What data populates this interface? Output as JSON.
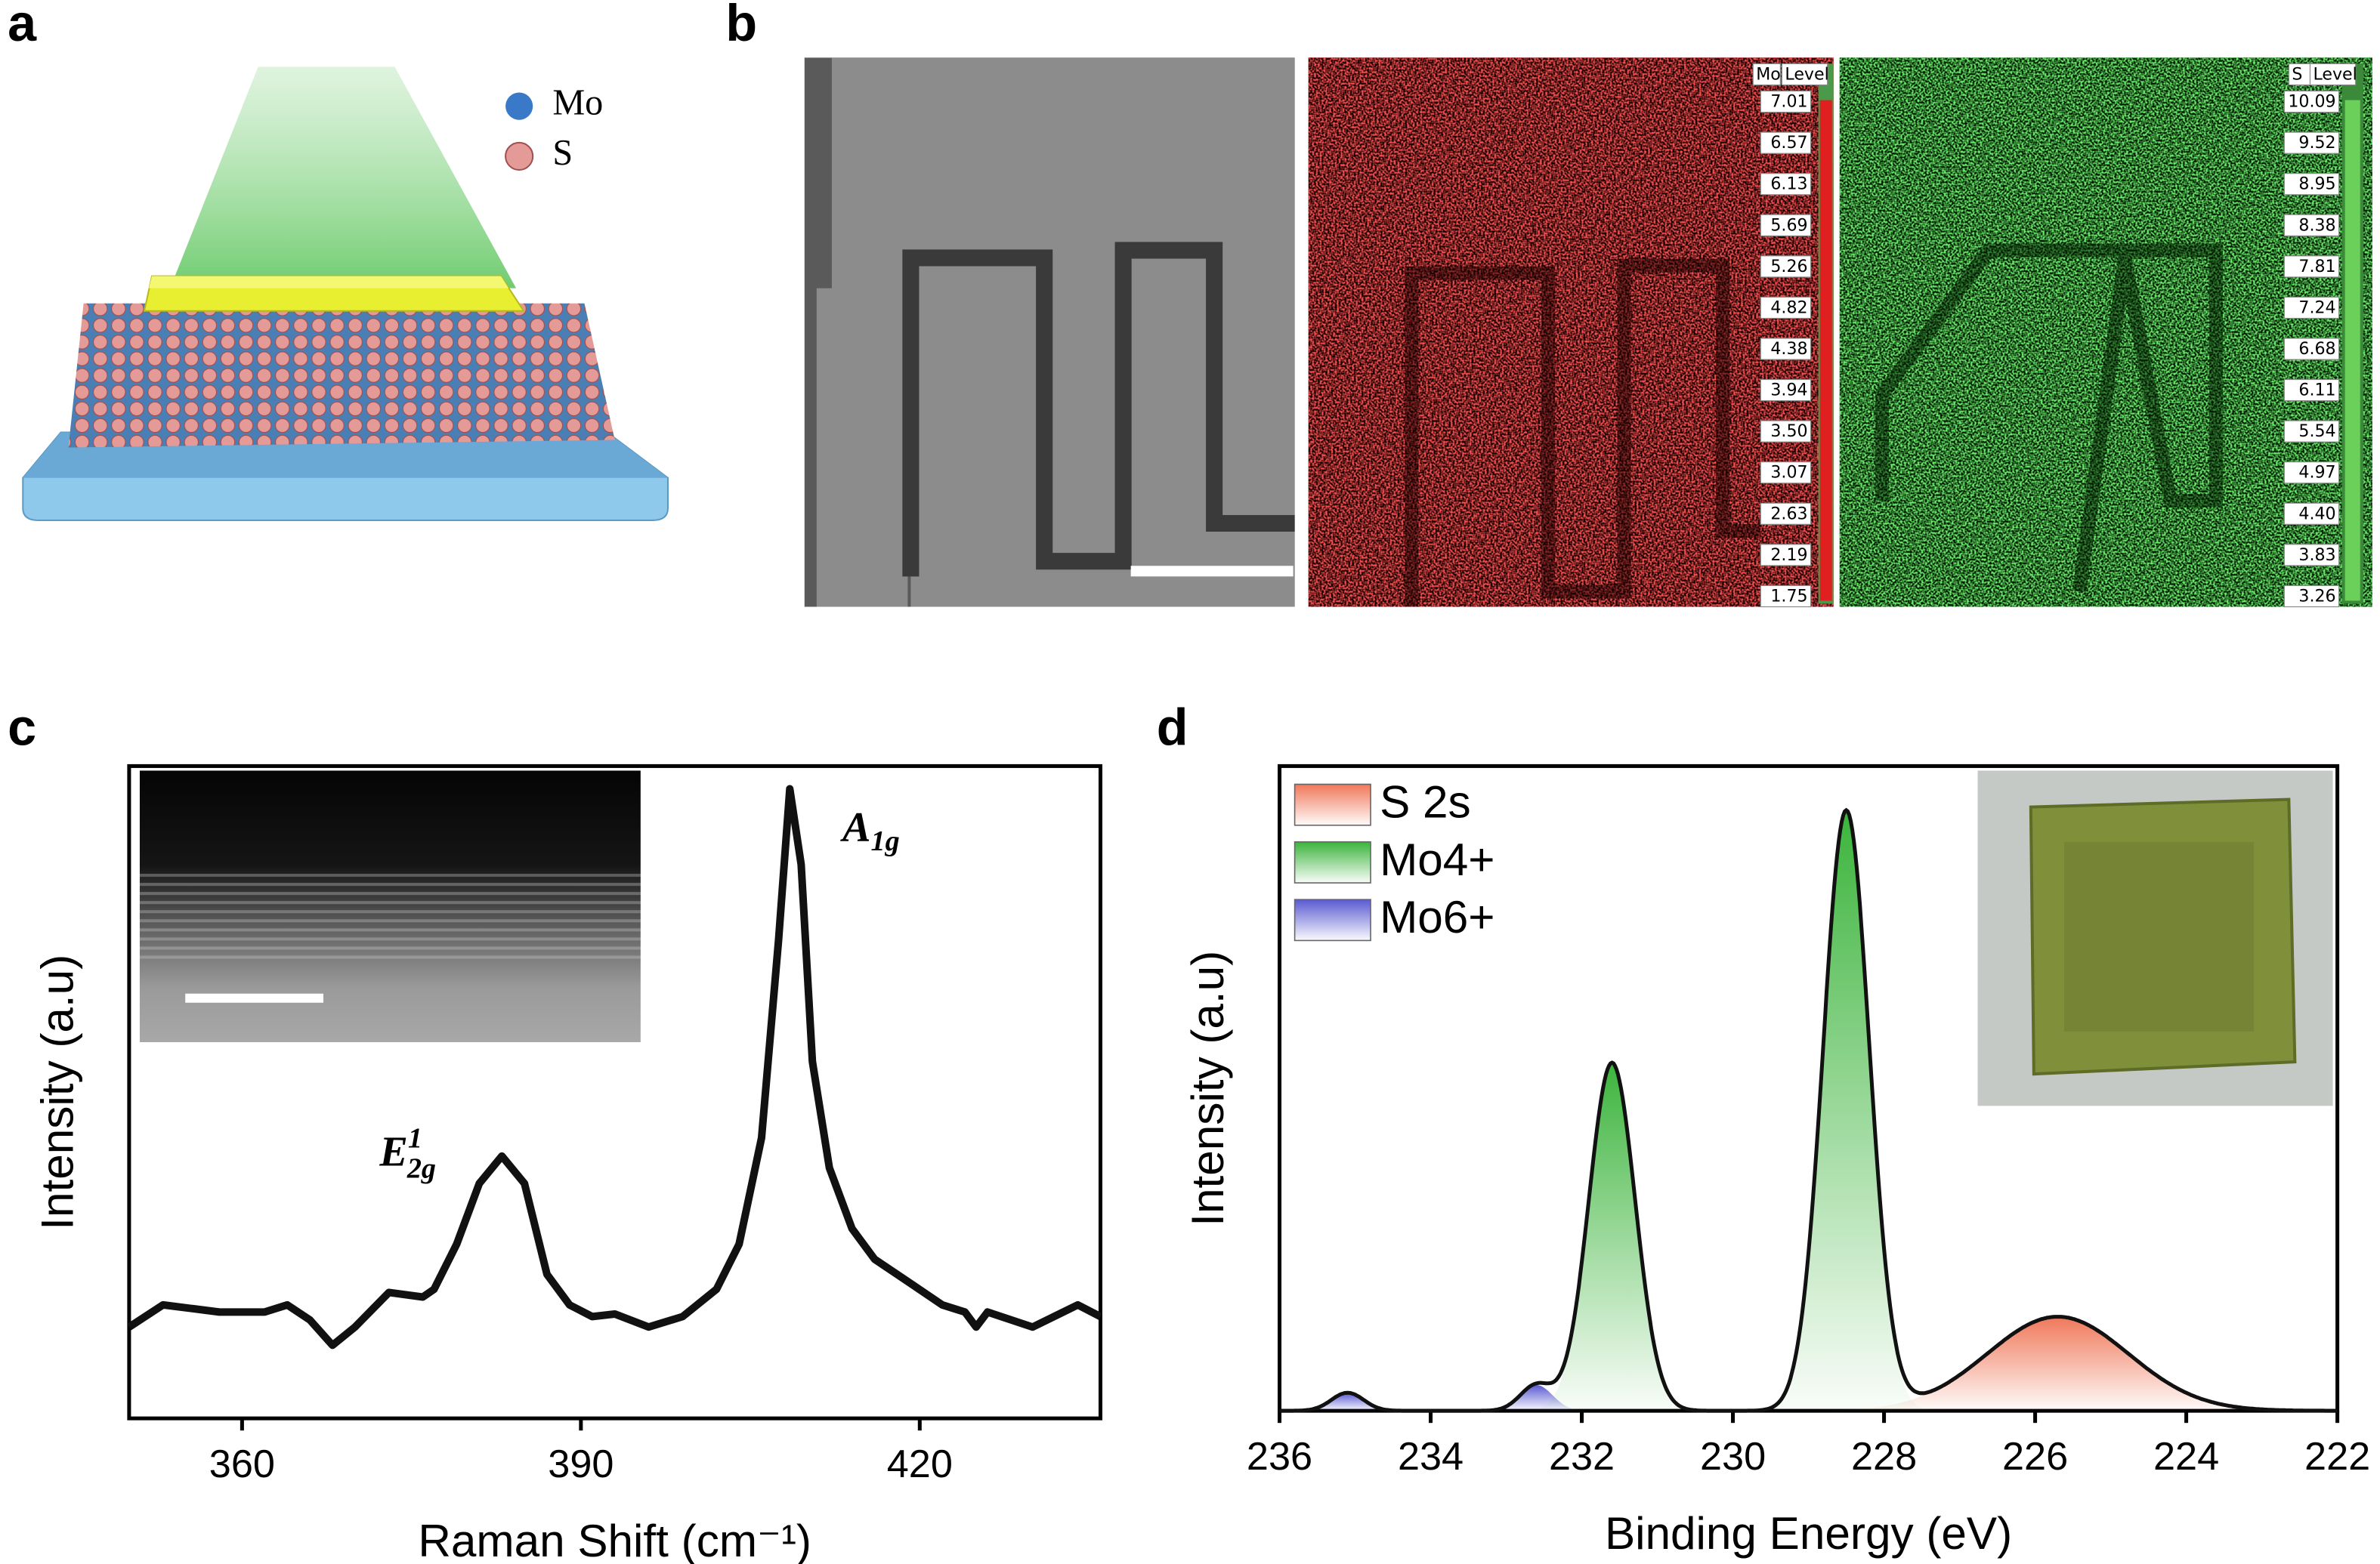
{
  "panel_labels": [
    "a",
    "b",
    "c",
    "d"
  ],
  "panel_a": {
    "legend": [
      "Mo",
      "S"
    ]
  },
  "panel_b": {
    "mo_map": {
      "header": [
        "Mo",
        "Level"
      ],
      "levels": [
        "7.01",
        "6.57",
        "6.13",
        "5.69",
        "5.26",
        "4.82",
        "4.38",
        "3.94",
        "3.50",
        "3.07",
        "2.63",
        "2.19",
        "1.75"
      ]
    },
    "s_map": {
      "header": [
        "S",
        "Level"
      ],
      "levels": [
        "10.09",
        "9.52",
        "8.95",
        "8.38",
        "7.81",
        "7.24",
        "6.68",
        "6.11",
        "5.54",
        "4.97",
        "4.40",
        "3.83",
        "3.26"
      ]
    }
  },
  "chart_data": [
    {
      "type": "line",
      "x_label": "Raman Shift (cm⁻¹)",
      "y_label": "Intensity (a.u)",
      "annotations": [
        {
          "base": "A",
          "sub": "1g"
        },
        {
          "base": "E",
          "sup": "1",
          "sub": "2g"
        }
      ],
      "xlim": [
        350,
        436
      ],
      "xticks": [
        360,
        390,
        420
      ],
      "ylim": [
        0,
        100
      ],
      "color": "#111111",
      "x": [
        350,
        353,
        358,
        362,
        364,
        366,
        368,
        370,
        373,
        376,
        377,
        379,
        381,
        383,
        385,
        387,
        389,
        391,
        393,
        396,
        399,
        402,
        404,
        406,
        407.5,
        408.5,
        409.5,
        410.5,
        412,
        414,
        416,
        419,
        422,
        424,
        425,
        426,
        430,
        434,
        436
      ],
      "values": [
        14.0,
        17.4,
        16.3,
        16.3,
        17.4,
        15.1,
        11.2,
        14.0,
        19.3,
        18.6,
        19.8,
        26.7,
        36.0,
        40.2,
        36.0,
        22.1,
        17.4,
        15.6,
        16.0,
        14.0,
        15.6,
        19.8,
        26.7,
        43.0,
        73.3,
        96.5,
        84.9,
        54.7,
        38.4,
        29.1,
        24.4,
        20.9,
        17.4,
        16.3,
        14.0,
        16.3,
        14.0,
        17.4,
        15.6
      ]
    },
    {
      "type": "peakfit",
      "x_label": "Binding Energy (eV)",
      "y_label": "Intensity (a.u)",
      "xlim": [
        236,
        222
      ],
      "xticks": [
        236,
        234,
        232,
        230,
        228,
        226,
        224,
        222
      ],
      "ylim": [
        0,
        100
      ],
      "series": [
        {
          "name": "S 2s",
          "color": "#f0785a",
          "peaks": [
            {
              "center": 225.7,
              "height": 14.6,
              "fwhm": 2.2
            }
          ]
        },
        {
          "name": "Mo4+",
          "color": "#3cb43c",
          "peaks": [
            {
              "center": 231.6,
              "height": 54,
              "fwhm": 0.72
            },
            {
              "center": 228.5,
              "height": 93,
              "fwhm": 0.72
            }
          ]
        },
        {
          "name": "Mo6+",
          "color": "#5a5ad2",
          "peaks": [
            {
              "center": 235.1,
              "height": 2.8,
              "fwhm": 0.5
            },
            {
              "center": 232.6,
              "height": 4,
              "fwhm": 0.5
            }
          ]
        }
      ]
    }
  ]
}
